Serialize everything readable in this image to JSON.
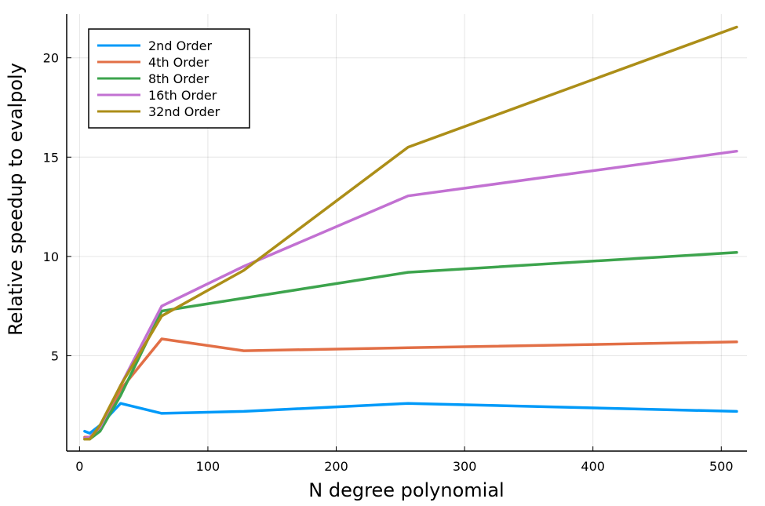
{
  "chart_data": {
    "type": "line",
    "title": "",
    "xlabel": "N degree polynomial",
    "ylabel": "Relative speedup to evalpoly",
    "xlim": [
      -10,
      520
    ],
    "ylim": [
      0.2,
      22.2
    ],
    "xticks": [
      0,
      100,
      200,
      300,
      400,
      500
    ],
    "yticks": [
      5,
      10,
      15,
      20
    ],
    "grid": true,
    "legend_position": "top-left",
    "x": [
      4,
      8,
      16,
      32,
      64,
      128,
      256,
      512
    ],
    "series": [
      {
        "name": "2nd Order",
        "color": "#009af9",
        "values": [
          1.2,
          1.1,
          1.5,
          2.6,
          2.1,
          2.2,
          2.6,
          2.2
        ]
      },
      {
        "name": "4th Order",
        "color": "#e26f46",
        "values": [
          0.9,
          0.9,
          1.3,
          3.3,
          5.85,
          5.25,
          5.4,
          5.7
        ]
      },
      {
        "name": "8th Order",
        "color": "#3da44d",
        "values": [
          0.8,
          0.8,
          1.2,
          3.0,
          7.25,
          7.9,
          9.2,
          10.2
        ]
      },
      {
        "name": "16th Order",
        "color": "#c271d2",
        "values": [
          0.85,
          0.9,
          1.4,
          3.5,
          7.5,
          9.5,
          13.05,
          15.3
        ]
      },
      {
        "name": "32nd Order",
        "color": "#ac8e18",
        "values": [
          0.8,
          0.8,
          1.5,
          3.5,
          7.0,
          9.3,
          15.5,
          21.55
        ]
      }
    ]
  }
}
